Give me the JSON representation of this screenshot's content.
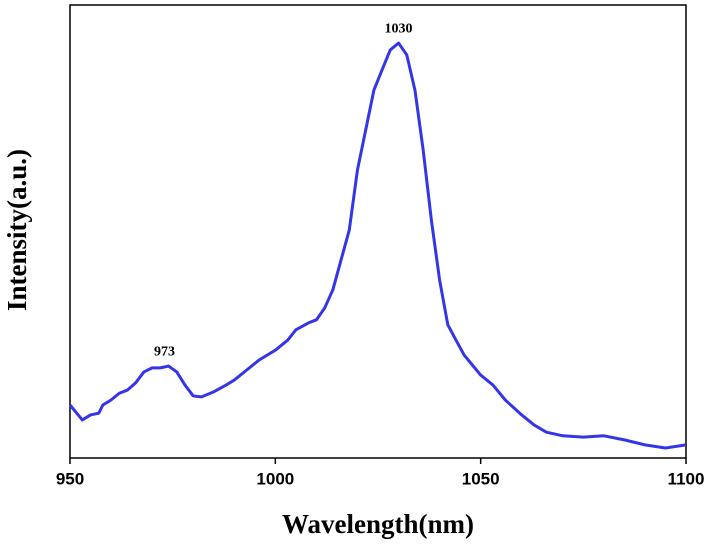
{
  "chart_data": {
    "type": "line",
    "xlabel": "Wavelength(nm)",
    "ylabel": "Intensity(a.u.)",
    "xlim": [
      950,
      1100
    ],
    "xticks": [
      950,
      1000,
      1050,
      1100
    ],
    "ylim": [
      0,
      100
    ],
    "annotations": [
      973,
      1030
    ],
    "series": [
      {
        "color": "#3535e8",
        "x": [
          950,
          952,
          953,
          955,
          957,
          958,
          960,
          962,
          964,
          966,
          968,
          970,
          972,
          974,
          976,
          978,
          980,
          982,
          985,
          988,
          990,
          993,
          996,
          1000,
          1003,
          1005,
          1008,
          1010,
          1012,
          1014,
          1016,
          1018,
          1020,
          1022,
          1024,
          1026,
          1028,
          1030,
          1032,
          1034,
          1036,
          1038,
          1040,
          1042,
          1044,
          1046,
          1048,
          1050,
          1053,
          1056,
          1060,
          1063,
          1066,
          1070,
          1075,
          1080,
          1085,
          1090,
          1095,
          1100
        ],
        "values": [
          11.7,
          9.5,
          8.4,
          9.5,
          9.9,
          11.7,
          12.8,
          14.3,
          15.0,
          16.6,
          19.0,
          19.9,
          19.9,
          20.3,
          19.0,
          16.1,
          13.7,
          13.5,
          14.6,
          16.1,
          17.2,
          19.4,
          21.6,
          23.8,
          26.0,
          28.3,
          29.8,
          30.5,
          33.1,
          37.1,
          43.7,
          50.3,
          63.6,
          72.4,
          81.2,
          85.7,
          90.1,
          91.6,
          89.0,
          81.2,
          68.0,
          52.5,
          39.3,
          29.4,
          26.0,
          22.7,
          20.5,
          18.3,
          16.1,
          12.8,
          9.5,
          7.3,
          5.7,
          4.9,
          4.6,
          4.9,
          4.0,
          2.9,
          2.2,
          2.9
        ]
      }
    ]
  }
}
